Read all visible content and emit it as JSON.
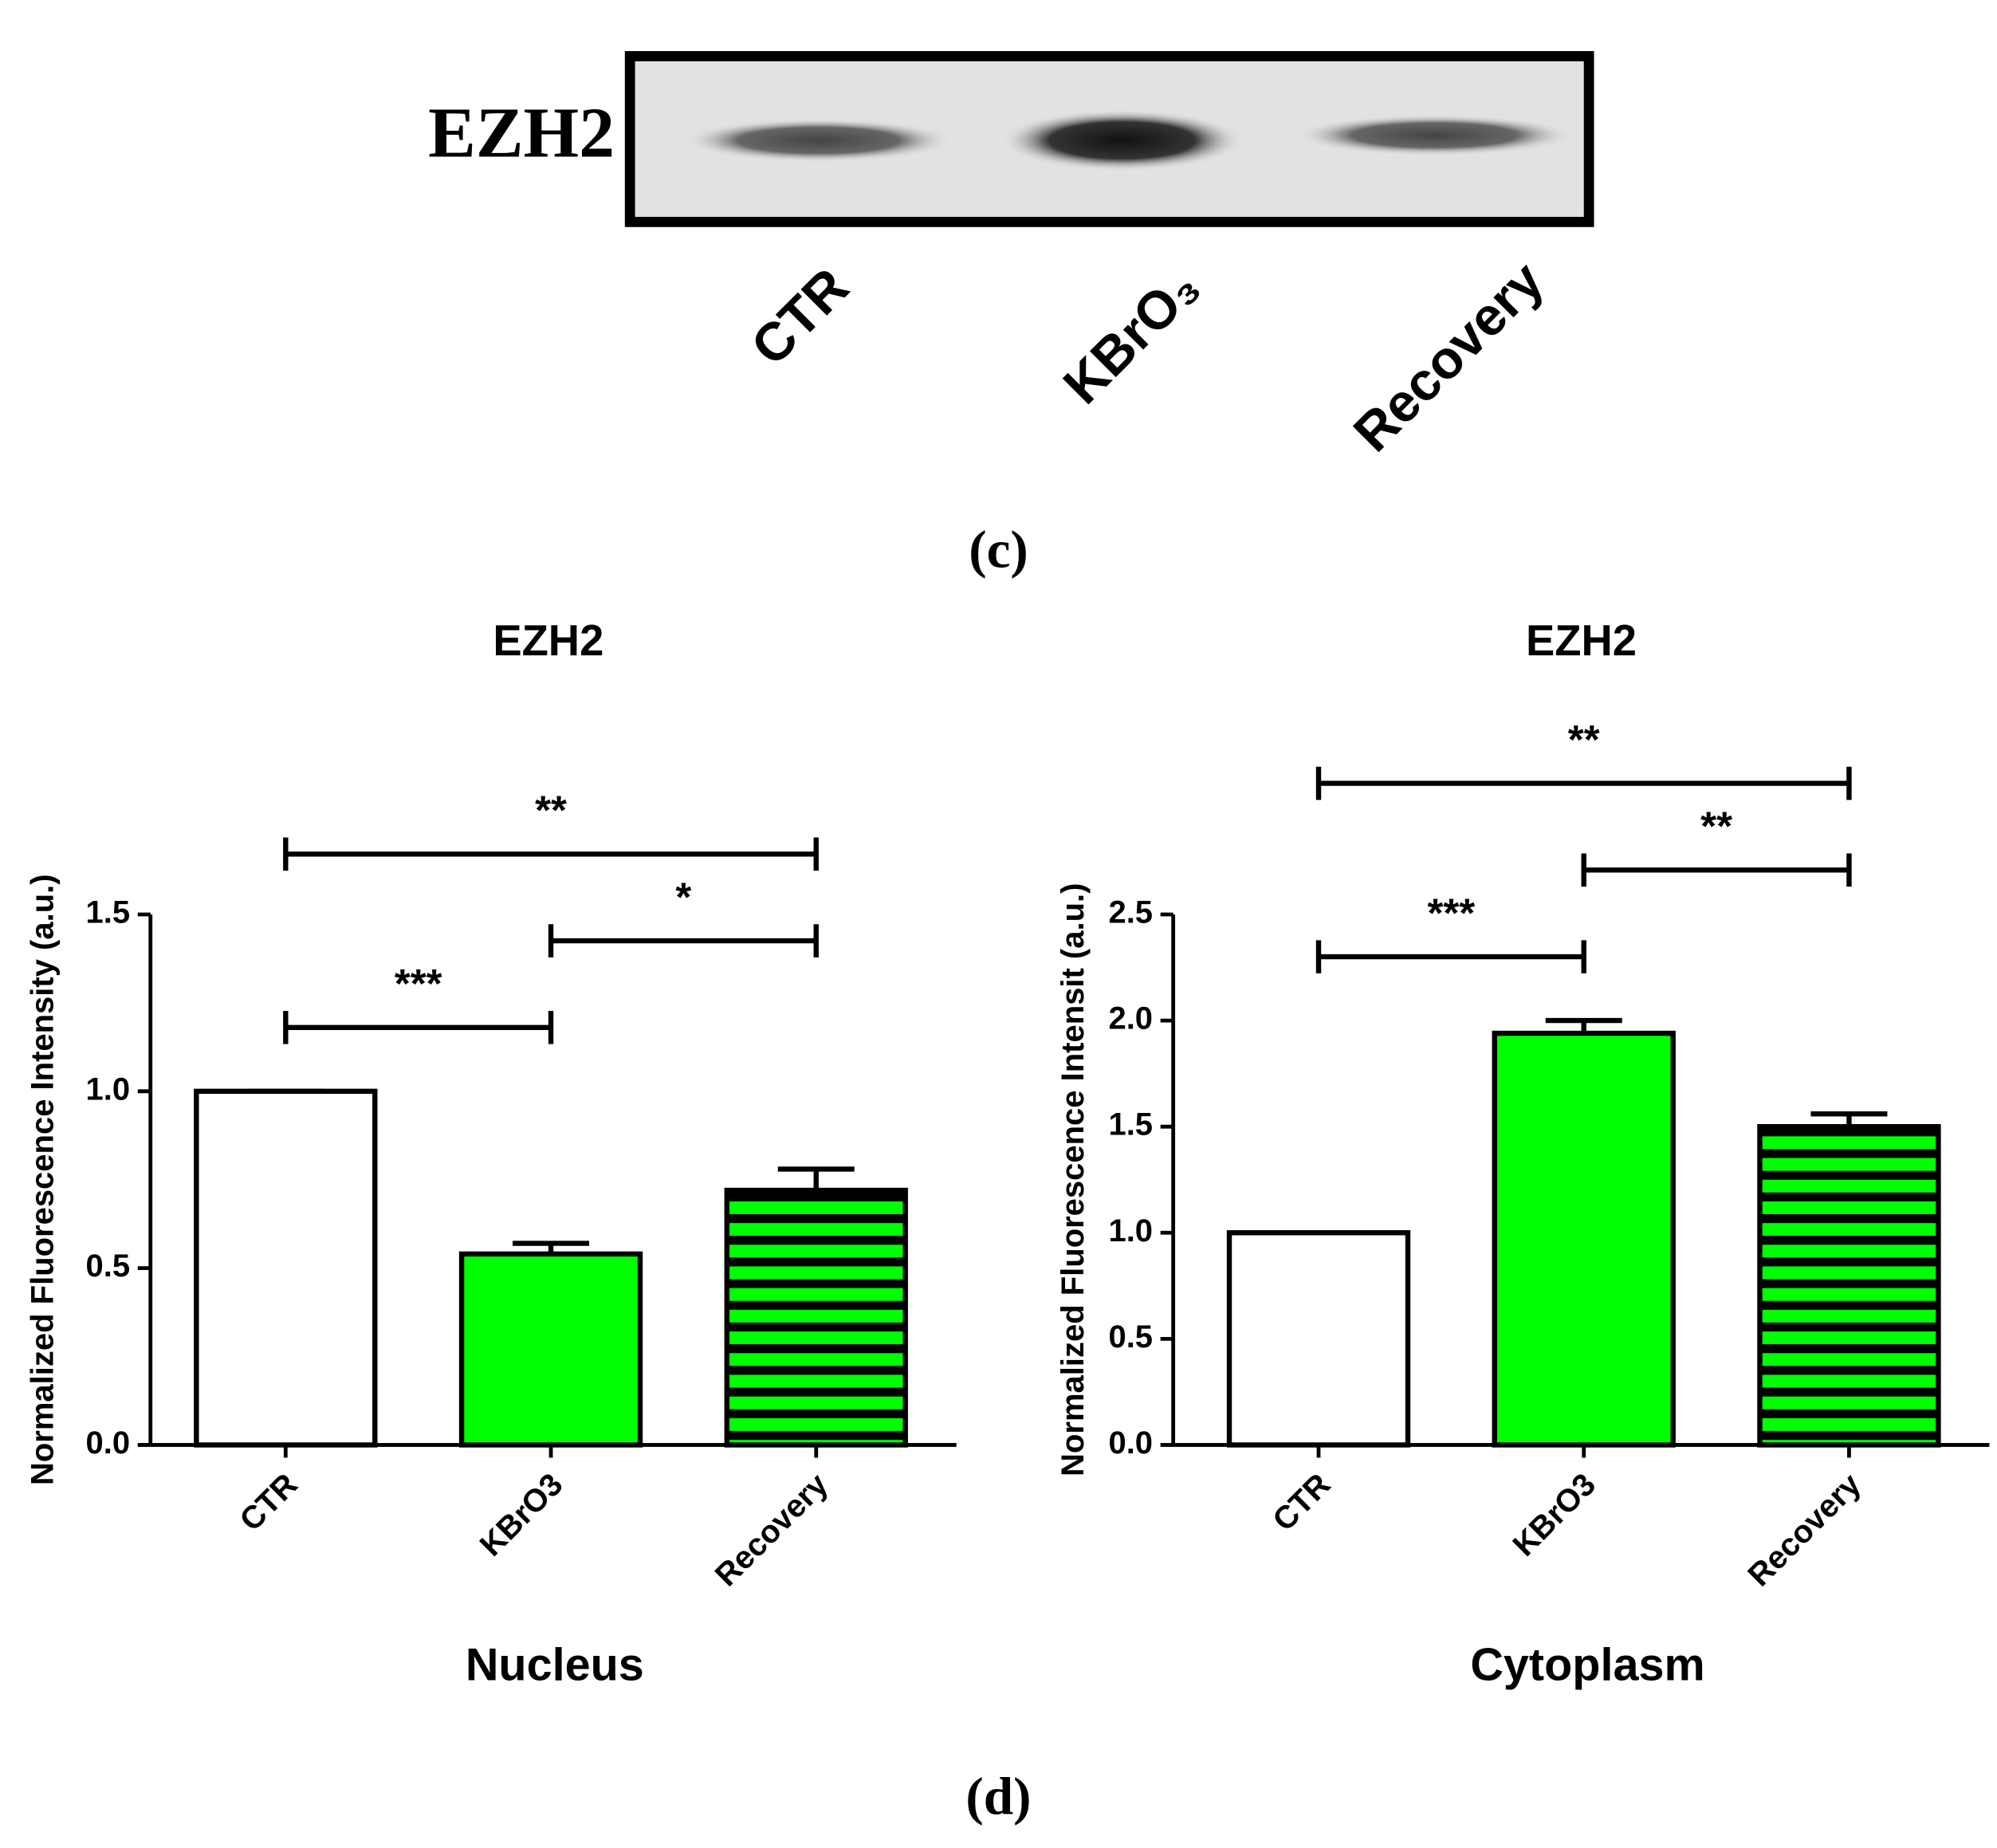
{
  "blot": {
    "label": "EZH2",
    "lanes": [
      "CTR",
      "KBrO₃",
      "Recovery"
    ],
    "panel_label": "(c)"
  },
  "panel_label": "(d)",
  "chart_data": [
    {
      "type": "bar",
      "title": "EZH2",
      "y_label": "Normalized Fluorescence Intensity (a.u.)",
      "x_label": "Nucleus",
      "categories": [
        "CTR",
        "KBrO3",
        "Recovery"
      ],
      "values": [
        1.0,
        0.54,
        0.72
      ],
      "errors": [
        0,
        0.03,
        0.06
      ],
      "colors": [
        "#ffffff",
        "#00ff00",
        "#00ff00"
      ],
      "patterns": [
        "solid",
        "solid",
        "horizontal-stripes"
      ],
      "ylim": [
        0,
        1.5
      ],
      "yticks": [
        {
          "value": 0,
          "label": "0.0"
        },
        0.5,
        {
          "value": 1,
          "label": "1.0"
        },
        1.5
      ],
      "comparisons": [
        {
          "groups": [
            0,
            1
          ],
          "label": "***"
        },
        {
          "groups": [
            1,
            2
          ],
          "label": "*"
        },
        {
          "groups": [
            0,
            2
          ],
          "label": "**"
        }
      ]
    },
    {
      "type": "bar",
      "title": "EZH2",
      "y_label": "Normalized Fluorescence Intensit (a.u.)",
      "x_label": "Cytoplasm",
      "categories": [
        "CTR",
        "KBrO3",
        "Recovery"
      ],
      "values": [
        1.0,
        1.94,
        1.5
      ],
      "errors": [
        0,
        0.06,
        0.06
      ],
      "colors": [
        "#ffffff",
        "#00ff00",
        "#00ff00"
      ],
      "patterns": [
        "solid",
        "solid",
        "horizontal-stripes"
      ],
      "ylim": [
        0,
        2.5
      ],
      "yticks": [
        {
          "value": 0,
          "label": "0.0"
        },
        0.5,
        {
          "value": 1,
          "label": "1.0"
        },
        1.5,
        {
          "value": 2,
          "label": "2.0"
        },
        2.5
      ],
      "comparisons": [
        {
          "groups": [
            0,
            1
          ],
          "label": "***"
        },
        {
          "groups": [
            1,
            2
          ],
          "label": "**"
        },
        {
          "groups": [
            0,
            2
          ],
          "label": "**"
        }
      ]
    }
  ]
}
